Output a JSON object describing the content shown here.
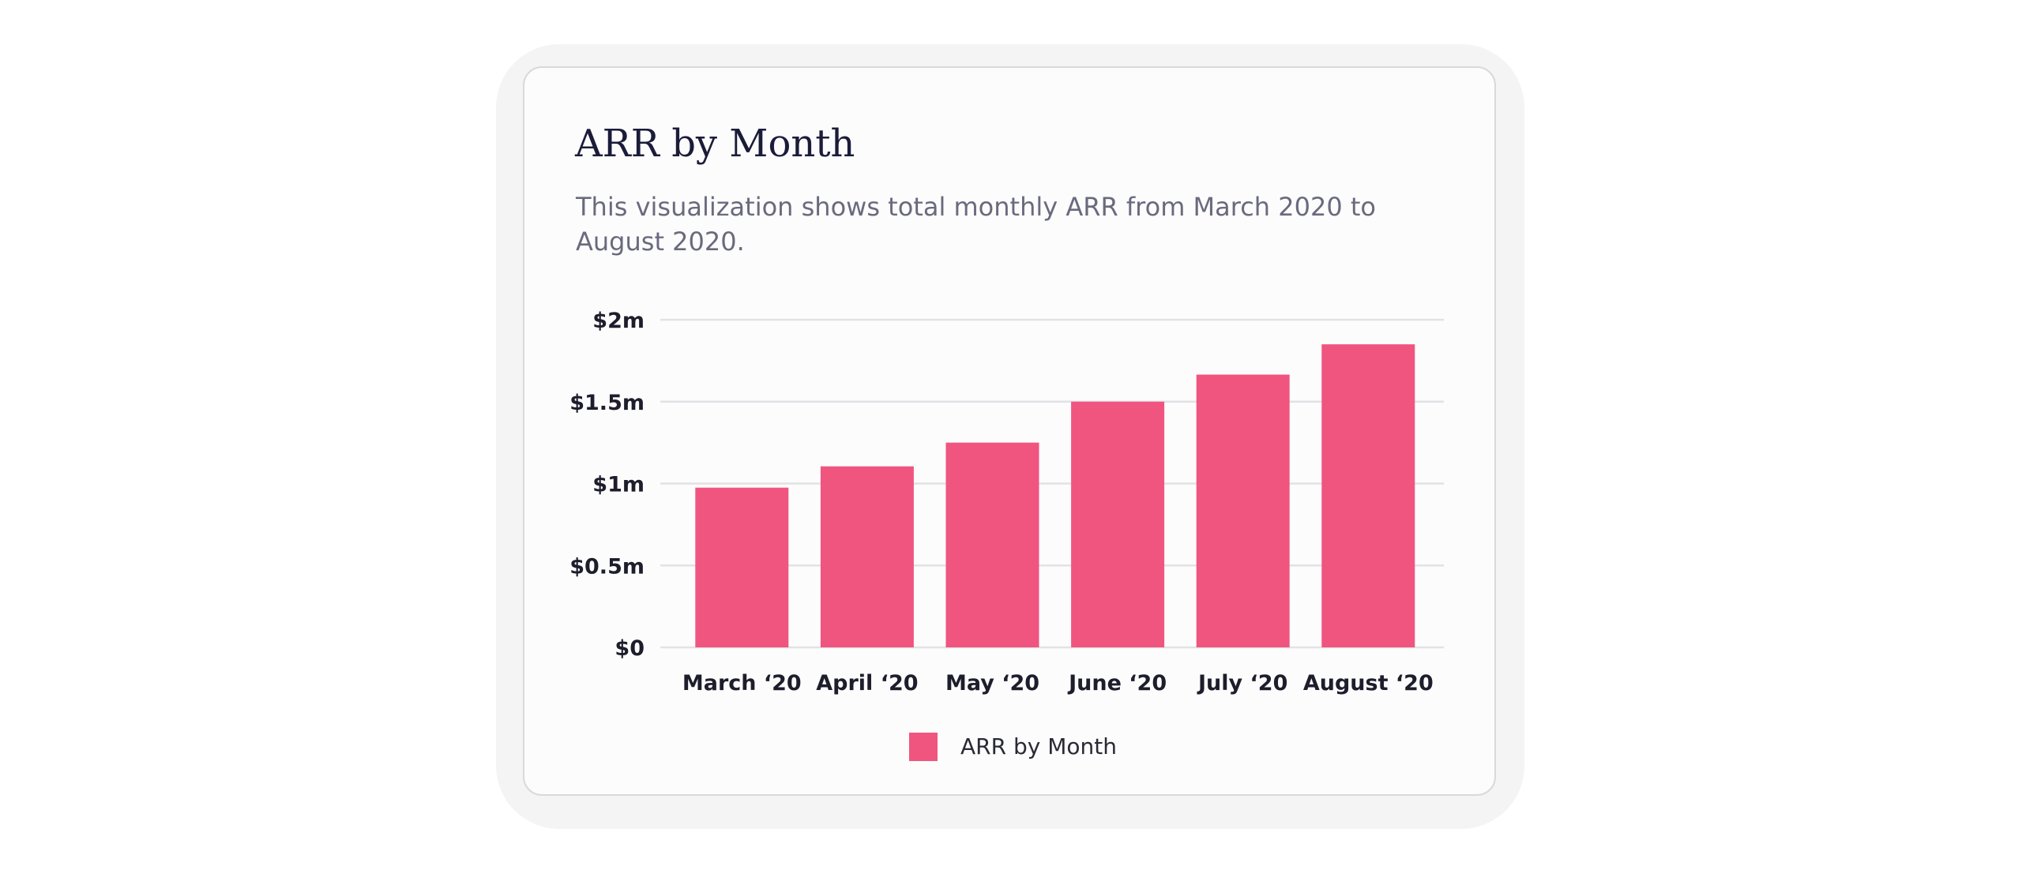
{
  "card": {
    "title": "ARR by Month",
    "description": "This visualization shows total monthly ARR from March 2020 to August 2020."
  },
  "chart_data": {
    "type": "bar",
    "title": "ARR by Month",
    "xlabel": "",
    "ylabel": "",
    "categories": [
      "March ‘20",
      "April ‘20",
      "May ‘20",
      "June ‘20",
      "July ‘20",
      "August ‘20"
    ],
    "series": [
      {
        "name": "ARR by Month",
        "values": [
          975000,
          1105000,
          1250000,
          1500000,
          1665000,
          1850000
        ]
      }
    ],
    "ylim": [
      0,
      2000000
    ],
    "yticks": [
      0,
      500000,
      1000000,
      1500000,
      2000000
    ],
    "ytick_labels": [
      "$0",
      "$0.5m",
      "$1m",
      "$1.5m",
      "$2m"
    ],
    "grid": true,
    "legend": "bottom-center",
    "bar_color": "#f0557f",
    "grid_color": "#e2e2e6"
  }
}
